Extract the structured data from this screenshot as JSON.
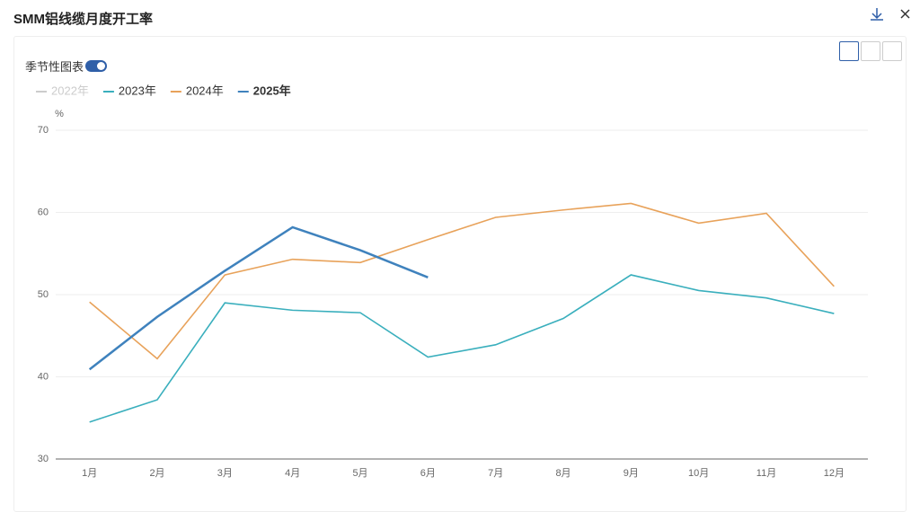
{
  "toggle_label": "季节性图表",
  "chart_data": {
    "type": "line",
    "title": "SMM铝线缆月度开工率",
    "y_label": "%",
    "categories": [
      "1月",
      "2月",
      "3月",
      "4月",
      "5月",
      "6月",
      "7月",
      "8月",
      "9月",
      "10月",
      "11月",
      "12月"
    ],
    "series": [
      {
        "name": "2022年",
        "color": "#cccccc",
        "visible": false,
        "values": [
          null,
          null,
          null,
          null,
          null,
          null,
          null,
          null,
          null,
          null,
          null,
          null
        ]
      },
      {
        "name": "2023年",
        "color": "#3aafbd",
        "values": [
          34.5,
          37.2,
          49.0,
          48.1,
          47.8,
          42.4,
          43.9,
          47.1,
          52.4,
          50.5,
          49.6,
          47.7
        ]
      },
      {
        "name": "2024年",
        "color": "#e8a25a",
        "values": [
          49.1,
          42.2,
          52.4,
          54.3,
          53.9,
          56.7,
          59.4,
          60.3,
          61.1,
          58.7,
          59.9,
          51.0
        ]
      },
      {
        "name": "2025年",
        "color": "#3f82bd",
        "bold": true,
        "values": [
          40.9,
          47.3,
          52.9,
          58.2,
          55.4,
          52.1,
          null,
          null,
          null,
          null,
          null,
          null
        ]
      }
    ],
    "ylim": [
      30,
      70
    ],
    "yticks": [
      30,
      40,
      50,
      60,
      70
    ],
    "grid": true
  }
}
